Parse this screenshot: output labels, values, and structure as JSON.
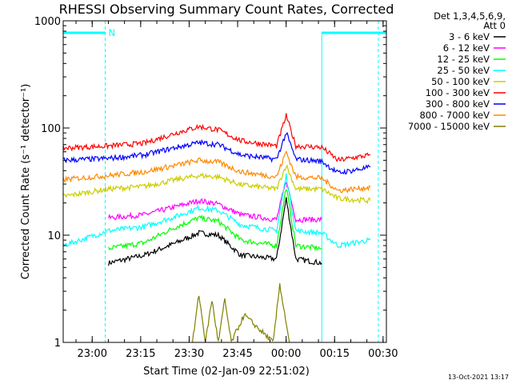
{
  "chart_data": {
    "type": "line",
    "title": "RHESSI Observing Summary Count Rates, Corrected",
    "xlabel": "Start Time (02-Jan-09 22:51:02)",
    "ylabel": "Corrected Count Rate (s⁻¹ detector⁻¹)",
    "y_scale": "log",
    "ylim": [
      1,
      1000
    ],
    "xlim_minutes_from_start": [
      0,
      100
    ],
    "x_ticks": [
      {
        "label": "23:00",
        "minute": 8.97
      },
      {
        "label": "23:15",
        "minute": 23.97
      },
      {
        "label": "23:30",
        "minute": 38.97
      },
      {
        "label": "23:45",
        "minute": 53.97
      },
      {
        "label": "00:00",
        "minute": 68.97
      },
      {
        "label": "00:15",
        "minute": 83.97
      },
      {
        "label": "00:30",
        "minute": 98.97
      }
    ],
    "y_ticks": [
      {
        "label": "1",
        "value": 1
      },
      {
        "label": "10",
        "value": 10
      },
      {
        "label": "100",
        "value": 100
      },
      {
        "label": "1000",
        "value": 1000
      }
    ],
    "legend_header": [
      "Det 1,3,4,5,6,9,",
      "Att 0"
    ],
    "legend_placement": "right",
    "series": [
      {
        "name": "3 - 6 keV",
        "color": "#000000",
        "points": [
          [
            14,
            5.5
          ],
          [
            25,
            6.5
          ],
          [
            35,
            8.5
          ],
          [
            42,
            10.5
          ],
          [
            48,
            10
          ],
          [
            55,
            6.5
          ],
          [
            66,
            6
          ],
          [
            69,
            22
          ],
          [
            72,
            6
          ],
          [
            80,
            5.5
          ]
        ]
      },
      {
        "name": "6 - 12 keV",
        "color": "#ff00ff",
        "points": [
          [
            14,
            14.5
          ],
          [
            25,
            15.5
          ],
          [
            35,
            18.5
          ],
          [
            42,
            21
          ],
          [
            48,
            19.5
          ],
          [
            55,
            15.5
          ],
          [
            66,
            14
          ],
          [
            69,
            32
          ],
          [
            72,
            14
          ],
          [
            80,
            14
          ]
        ]
      },
      {
        "name": "12 - 25 keV",
        "color": "#00ff00",
        "points": [
          [
            14,
            7.5
          ],
          [
            25,
            8.5
          ],
          [
            35,
            12
          ],
          [
            42,
            14.5
          ],
          [
            48,
            13.5
          ],
          [
            55,
            9
          ],
          [
            66,
            8
          ],
          [
            69,
            28
          ],
          [
            72,
            8
          ],
          [
            80,
            7.5
          ]
        ]
      },
      {
        "name": "25 - 50 keV",
        "color": "#00ffff",
        "points": [
          [
            0,
            8
          ],
          [
            14,
            11
          ],
          [
            25,
            12
          ],
          [
            35,
            15
          ],
          [
            42,
            18
          ],
          [
            48,
            17
          ],
          [
            55,
            12.5
          ],
          [
            66,
            11
          ],
          [
            69,
            36
          ],
          [
            72,
            11
          ],
          [
            80,
            10.5
          ],
          [
            85,
            8
          ],
          [
            95,
            9
          ]
        ]
      },
      {
        "name": "50 - 100 keV",
        "color": "#cccc00",
        "points": [
          [
            0,
            23
          ],
          [
            14,
            27
          ],
          [
            25,
            28.5
          ],
          [
            35,
            33
          ],
          [
            42,
            36
          ],
          [
            48,
            35
          ],
          [
            55,
            29.5
          ],
          [
            66,
            27
          ],
          [
            69,
            45
          ],
          [
            72,
            27
          ],
          [
            80,
            27
          ],
          [
            85,
            22
          ],
          [
            95,
            21
          ]
        ]
      },
      {
        "name": "100 - 300 keV",
        "color": "#ff0000",
        "points": [
          [
            0,
            65
          ],
          [
            14,
            68
          ],
          [
            25,
            72
          ],
          [
            35,
            90
          ],
          [
            42,
            103
          ],
          [
            48,
            96
          ],
          [
            55,
            76
          ],
          [
            66,
            68
          ],
          [
            69,
            130
          ],
          [
            72,
            68
          ],
          [
            80,
            66
          ],
          [
            85,
            50
          ],
          [
            95,
            56
          ]
        ]
      },
      {
        "name": "300 - 800 keV",
        "color": "#0000ff",
        "points": [
          [
            0,
            50
          ],
          [
            14,
            52
          ],
          [
            25,
            56
          ],
          [
            35,
            66
          ],
          [
            42,
            73
          ],
          [
            48,
            70
          ],
          [
            55,
            56
          ],
          [
            66,
            51
          ],
          [
            69,
            90
          ],
          [
            72,
            51
          ],
          [
            80,
            49
          ],
          [
            85,
            38
          ],
          [
            95,
            43
          ]
        ]
      },
      {
        "name": "800 - 7000 keV",
        "color": "#ff8800",
        "points": [
          [
            0,
            33
          ],
          [
            14,
            36
          ],
          [
            25,
            39
          ],
          [
            35,
            45
          ],
          [
            42,
            50
          ],
          [
            48,
            48
          ],
          [
            55,
            39
          ],
          [
            66,
            35
          ],
          [
            69,
            60
          ],
          [
            72,
            35
          ],
          [
            80,
            34
          ],
          [
            85,
            26
          ],
          [
            95,
            28
          ]
        ]
      },
      {
        "name": "7000 - 15000 keV",
        "color": "#808000",
        "points": [
          [
            40,
            1
          ],
          [
            42,
            2.8
          ],
          [
            44,
            1
          ],
          [
            46,
            2.5
          ],
          [
            48,
            1
          ],
          [
            50,
            2.5
          ],
          [
            52,
            1
          ],
          [
            56,
            1.8
          ],
          [
            65,
            1
          ],
          [
            67,
            3.5
          ],
          [
            70,
            1
          ]
        ]
      }
    ],
    "night_flag_label": "N",
    "night_intervals": [
      [
        0,
        13
      ],
      [
        80,
        100
      ]
    ],
    "dashed_markers_minutes": [
      13,
      97.5
    ],
    "solid_markers_minutes": [
      0,
      80
    ]
  },
  "footer": {
    "date": "13-Oct-2021 13:17"
  },
  "colors": {
    "bars": "#00ffff",
    "axis": "#000000"
  }
}
